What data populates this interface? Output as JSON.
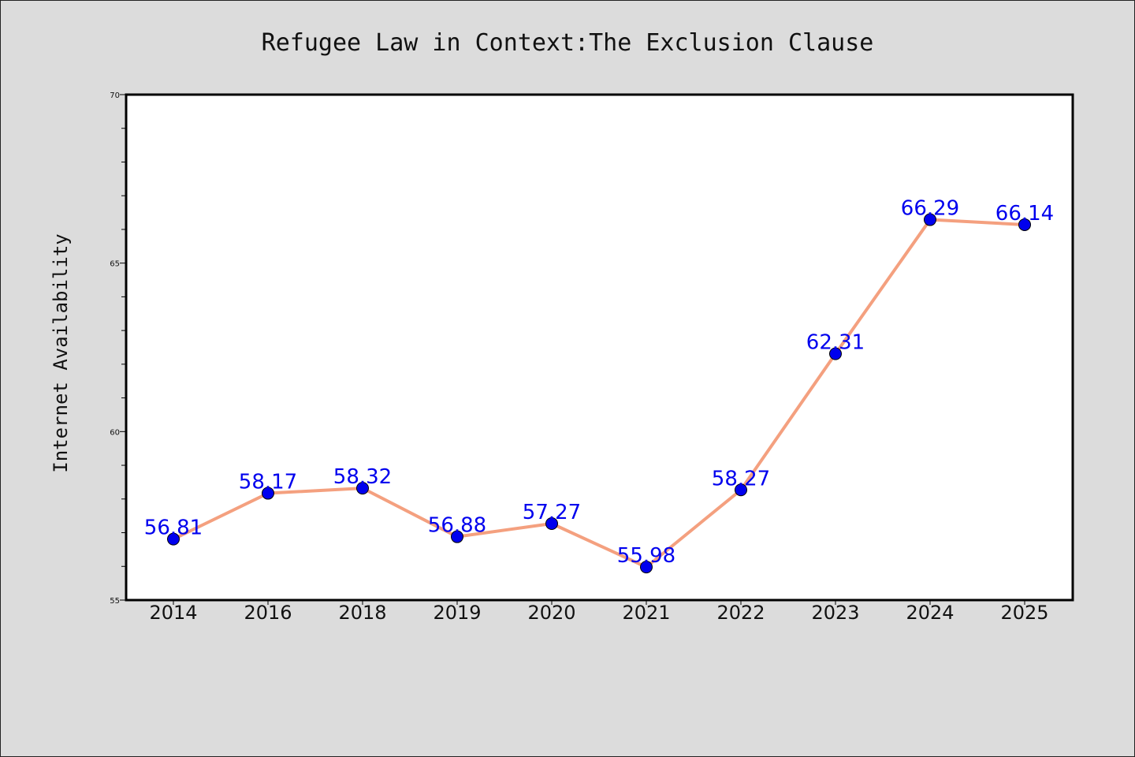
{
  "chart_data": {
    "type": "line",
    "title": "Refugee Law in Context:The Exclusion Clause",
    "xlabel": "",
    "ylabel": "Internet Availability",
    "categories": [
      "2014",
      "2016",
      "2018",
      "2019",
      "2020",
      "2021",
      "2022",
      "2023",
      "2024",
      "2025"
    ],
    "series": [
      {
        "values": [
          56.81,
          58.17,
          58.32,
          56.88,
          57.27,
          55.98,
          58.27,
          62.31,
          66.29,
          66.14
        ],
        "data_labels": [
          "56.81",
          "58.17",
          "58.32",
          "56.88",
          "57.27",
          "55.98",
          "58.27",
          "62.31",
          "66.29",
          "66.14"
        ]
      }
    ],
    "ylim": [
      55,
      70
    ],
    "yticks": [
      "55",
      "60",
      "65",
      "70"
    ],
    "grid": false,
    "legend": "none",
    "colors": {
      "line": "#f4a07f",
      "marker": "#0000ee",
      "label": "#0000ee",
      "plot_bg": "#ffffff",
      "figure_bg": "#dcdcdc"
    }
  }
}
